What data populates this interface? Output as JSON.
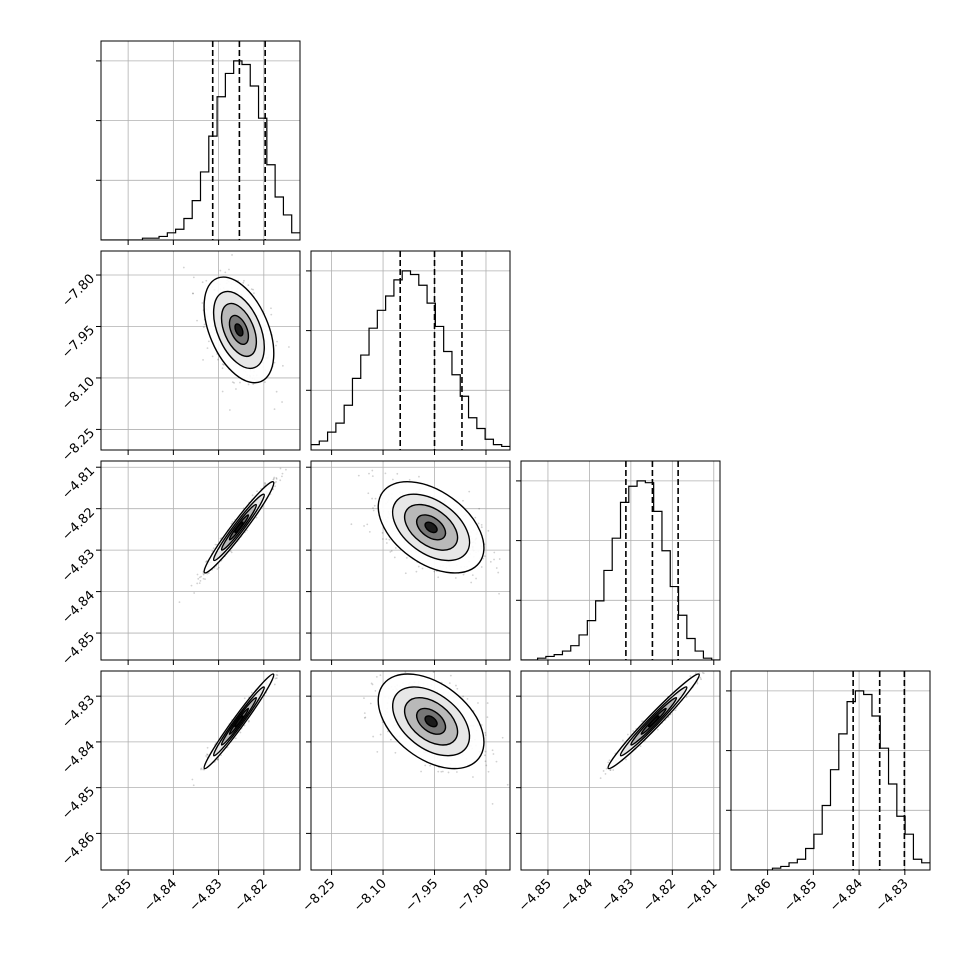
{
  "chart_data": {
    "type": "corner",
    "grid": true,
    "title": "",
    "parameters": [
      {
        "range": [
          -4.856,
          -4.812
        ],
        "ticks": [
          -4.85,
          -4.84,
          -4.83,
          -4.82
        ],
        "tick_labels": [
          "−4.85",
          "−4.84",
          "−4.83",
          "−4.82"
        ],
        "quantiles": [
          -4.8313,
          -4.8254,
          -4.8197
        ]
      },
      {
        "range": [
          -8.31,
          -7.73
        ],
        "ticks": [
          -8.25,
          -8.1,
          -7.95,
          -7.8
        ],
        "tick_labels": [
          "−8.25",
          "−8.10",
          "−7.95",
          "−7.80"
        ],
        "quantiles": [
          -8.05,
          -7.95,
          -7.87
        ]
      },
      {
        "range": [
          -4.8565,
          -4.8085
        ],
        "ticks": [
          -4.85,
          -4.84,
          -4.83,
          -4.82,
          -4.81
        ],
        "tick_labels": [
          "−4.85",
          "−4.84",
          "−4.83",
          "−4.82",
          "−4.81"
        ],
        "quantiles": [
          -4.8312,
          -4.8248,
          -4.8186
        ]
      },
      {
        "range": [
          -4.868,
          -4.8245
        ],
        "ticks": [
          -4.86,
          -4.85,
          -4.84,
          -4.83
        ],
        "tick_labels": [
          "−4.86",
          "−4.85",
          "−4.84",
          "−4.83"
        ],
        "quantiles": [
          -4.8413,
          -4.8355,
          -4.8301
        ]
      }
    ],
    "histograms": [
      [
        0,
        0,
        0,
        0,
        0,
        0.01,
        0.01,
        0.02,
        0.04,
        0.06,
        0.12,
        0.22,
        0.38,
        0.58,
        0.8,
        0.93,
        1.0,
        0.98,
        0.86,
        0.68,
        0.42,
        0.24,
        0.14,
        0.04
      ],
      [
        0.03,
        0.05,
        0.1,
        0.15,
        0.25,
        0.4,
        0.53,
        0.68,
        0.78,
        0.86,
        0.95,
        1.0,
        0.98,
        0.92,
        0.82,
        0.69,
        0.55,
        0.42,
        0.3,
        0.18,
        0.12,
        0.06,
        0.03,
        0.02
      ],
      [
        0,
        0,
        0.01,
        0.02,
        0.03,
        0.05,
        0.08,
        0.14,
        0.22,
        0.33,
        0.5,
        0.68,
        0.88,
        0.97,
        1.0,
        0.99,
        0.83,
        0.61,
        0.41,
        0.25,
        0.12,
        0.05,
        0.01,
        0.0
      ],
      [
        0,
        0,
        0,
        0,
        0,
        0.01,
        0.02,
        0.04,
        0.06,
        0.12,
        0.2,
        0.36,
        0.56,
        0.76,
        0.94,
        1.0,
        0.98,
        0.86,
        0.68,
        0.48,
        0.3,
        0.2,
        0.06,
        0.04
      ]
    ],
    "pairs": [
      {
        "row": 1,
        "col": 0,
        "mean": [
          -4.8255,
          -7.96
        ],
        "sd": [
          0.0035,
          0.07
        ],
        "corr": -0.45
      },
      {
        "row": 2,
        "col": 0,
        "mean": [
          -4.8255,
          -4.8245
        ],
        "sd": [
          0.0035,
          0.005
        ],
        "corr": 0.97
      },
      {
        "row": 2,
        "col": 1,
        "mean": [
          -7.96,
          -4.8245
        ],
        "sd": [
          0.07,
          0.005
        ],
        "corr": -0.45
      },
      {
        "row": 3,
        "col": 0,
        "mean": [
          -4.8255,
          -4.8355
        ],
        "sd": [
          0.0035,
          0.0047
        ],
        "corr": 0.98
      },
      {
        "row": 3,
        "col": 1,
        "mean": [
          -7.96,
          -4.8355
        ],
        "sd": [
          0.07,
          0.0047
        ],
        "corr": -0.44
      },
      {
        "row": 3,
        "col": 2,
        "mean": [
          -4.8245,
          -4.8355
        ],
        "sd": [
          0.005,
          0.0047
        ],
        "corr": 0.98
      }
    ]
  }
}
